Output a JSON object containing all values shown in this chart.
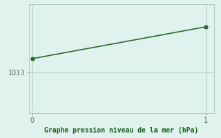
{
  "x": [
    0,
    1
  ],
  "y": [
    1014.5,
    1018.0
  ],
  "line_color": "#2d6a2d",
  "marker_color": "#2d6a2d",
  "background_color": "#dff2ee",
  "grid_color": "#a8c8c0",
  "xlabel": "Graphe pression niveau de la mer (hPa)",
  "xlabel_color": "#1a5c1a",
  "tick_color": "#666666",
  "xlim": [
    -0.02,
    1.05
  ],
  "ylim": [
    1008.5,
    1020.5
  ],
  "yticks": [
    1013
  ],
  "xticks": [
    0,
    1
  ],
  "line_width": 1.2,
  "marker_size": 3.5,
  "figsize": [
    3.2,
    2.0
  ],
  "dpi": 100
}
